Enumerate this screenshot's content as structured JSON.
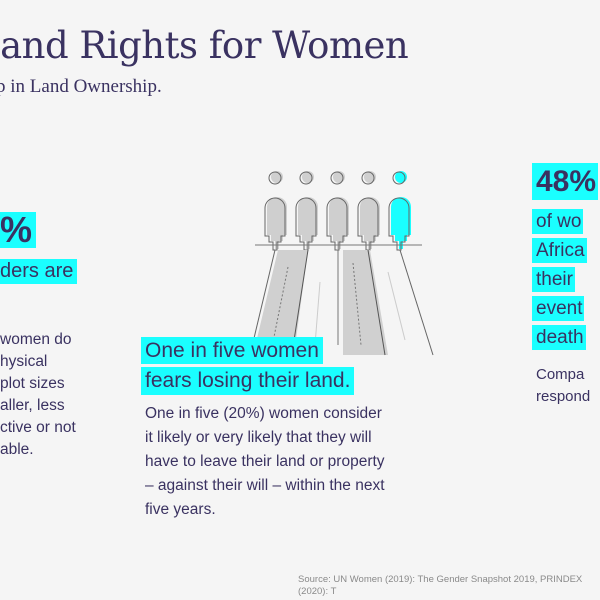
{
  "header": {
    "title": "Land Rights for Women",
    "subtitle": "p in Land Ownership."
  },
  "left": {
    "stat": "%",
    "lead": "ders are",
    "body": [
      "women do",
      "hysical",
      "plot sizes",
      "aller, less",
      "ctive or not",
      "able."
    ]
  },
  "center": {
    "icon": "women-figures-road-icon",
    "highlighted_count": 1,
    "total_figures": 5,
    "lead": [
      "One in five women",
      "fears losing their land."
    ],
    "body": [
      "One in five (20%) women consider",
      "it likely or very likely that they will",
      "have to leave their land or property",
      "– against their will – within the next",
      "five years."
    ]
  },
  "right": {
    "stat": "48%",
    "lead": [
      "of wo",
      "Africa",
      "their",
      "event",
      "death"
    ],
    "body": [
      "Compa",
      "respond"
    ]
  },
  "source": "Source: UN Women (2019): The Gender Snapshot 2019, PRINDEX (2020): T",
  "colors": {
    "accent": "#1affff",
    "text": "#3a3261",
    "background": "#f5f5f5"
  }
}
